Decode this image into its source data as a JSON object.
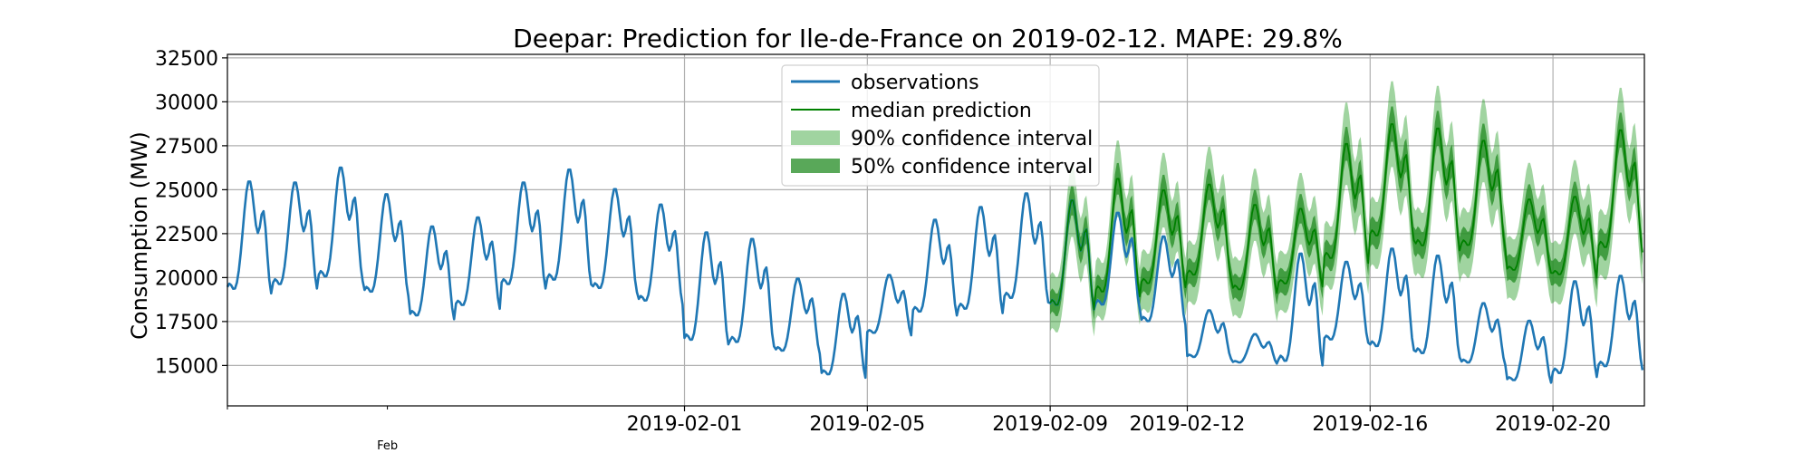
{
  "chart_data": {
    "type": "line",
    "title": "Deepar: Prediction for Ile-de-France on 2019-02-12. MAPE: 29.8%",
    "xlabel": "",
    "ylabel": "Consumption (MW)",
    "ylim": [
      12700,
      32700
    ],
    "xlim": [
      "2019-01-22",
      "2019-02-22"
    ],
    "grid": true,
    "legend": {
      "position": "top-center"
    },
    "y_ticks": [
      "15000",
      "17500",
      "20000",
      "22500",
      "25000",
      "27500",
      "30000",
      "32500"
    ],
    "x_ticks": [
      "2019-02-01",
      "2019-02-05",
      "2019-02-09",
      "2019-02-12",
      "2019-02-16",
      "2019-02-20"
    ],
    "x_minor_label": "Feb",
    "colors": {
      "observations": "#1f77b4",
      "median": "#008000",
      "ci90": "#2ca02c",
      "ci50": "#228b22"
    },
    "series": [
      {
        "name": "observations",
        "style": "line",
        "x": [
          "2019-01-22",
          "2019-01-23",
          "2019-01-24",
          "2019-01-25",
          "2019-01-26",
          "2019-01-27",
          "2019-01-28",
          "2019-01-29",
          "2019-01-30",
          "2019-01-31",
          "2019-02-01",
          "2019-02-02",
          "2019-02-03",
          "2019-02-04",
          "2019-02-05",
          "2019-02-06",
          "2019-02-07",
          "2019-02-08",
          "2019-02-09",
          "2019-02-10",
          "2019-02-11",
          "2019-02-12",
          "2019-02-13",
          "2019-02-14",
          "2019-02-15",
          "2019-02-16",
          "2019-02-17",
          "2019-02-18",
          "2019-02-19",
          "2019-02-20",
          "2019-02-21"
        ],
        "daily_peak": [
          26300,
          26200,
          27100,
          25500,
          23600,
          24100,
          26200,
          27000,
          25800,
          24900,
          23400,
          23000,
          20500,
          19700,
          20600,
          24000,
          24800,
          25600,
          25200,
          24400,
          23000,
          18500,
          17000,
          22200,
          21500,
          22400,
          22000,
          19000,
          18000,
          20500,
          20800
        ],
        "daily_trough": [
          18700,
          19000,
          19400,
          18600,
          17300,
          17900,
          19000,
          19200,
          18800,
          18100,
          15800,
          15700,
          15400,
          14000,
          16500,
          17500,
          17600,
          18200,
          17800,
          17900,
          17000,
          15200,
          15000,
          14600,
          16000,
          15500,
          15100,
          14800,
          13800,
          14000,
          14400
        ]
      },
      {
        "name": "median prediction",
        "style": "line",
        "x": [
          "2019-02-09",
          "2019-02-10",
          "2019-02-11",
          "2019-02-12",
          "2019-02-13",
          "2019-02-14",
          "2019-02-15",
          "2019-02-16",
          "2019-02-17",
          "2019-02-18",
          "2019-02-19",
          "2019-02-20",
          "2019-02-21"
        ],
        "daily_peak": [
          25200,
          26500,
          25700,
          26000,
          24800,
          24500,
          28500,
          29600,
          29400,
          28600,
          25000,
          25200,
          29300
        ],
        "daily_trough": [
          17800,
          18500,
          19100,
          19600,
          18800,
          19200,
          20400,
          21700,
          21100,
          21200,
          20000,
          19700,
          21000
        ]
      },
      {
        "name": "90% confidence interval",
        "style": "band",
        "relative_halfwidth": 0.085
      },
      {
        "name": "50% confidence interval",
        "style": "band",
        "relative_halfwidth": 0.035
      }
    ]
  }
}
